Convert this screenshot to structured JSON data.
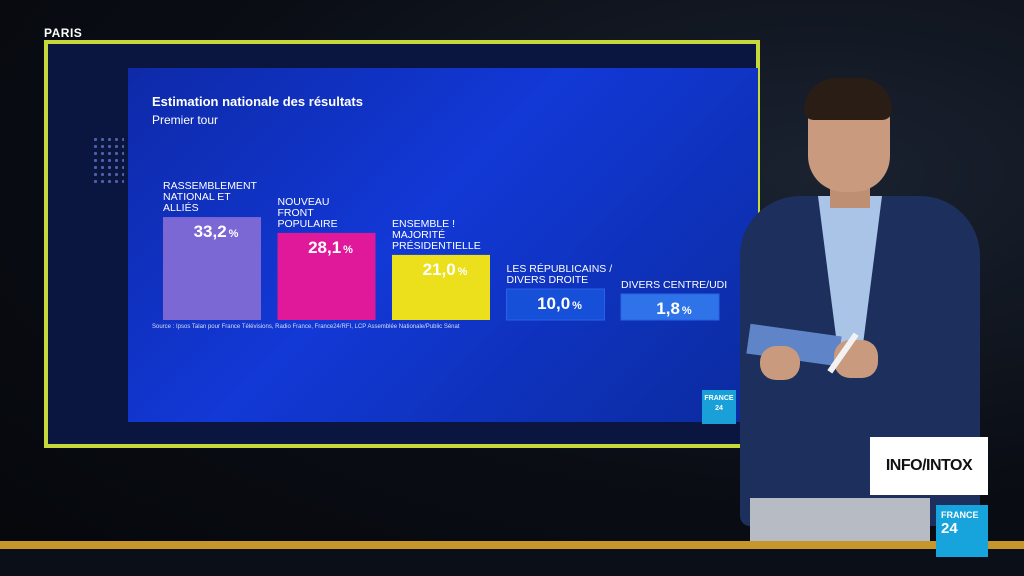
{
  "location": "PARIS",
  "colors": {
    "rn": "#7b68d4",
    "nfp": "#e0199a",
    "ens": "#ecdf1c",
    "lr": "#1650d8",
    "dvc": "#2f73e8",
    "frame": "#c7d93a"
  },
  "chart_data": {
    "type": "bar",
    "title": "Estimation nationale des résultats",
    "subtitle": "Premier tour",
    "categories": [
      [
        "RASSEMBLEMENT",
        "NATIONAL ET",
        "ALLIÉS"
      ],
      [
        "NOUVEAU",
        "FRONT",
        "POPULAIRE"
      ],
      [
        "ENSEMBLE !",
        "MAJORITÉ",
        "PRÉSIDENTIELLE"
      ],
      [
        "LES RÉPUBLICAINS /",
        "DIVERS DROITE"
      ],
      [
        "DIVERS CENTRE/UDI"
      ]
    ],
    "values": [
      33.2,
      28.1,
      21.0,
      10.0,
      1.8
    ],
    "value_labels": [
      "33,2",
      "28,1",
      "21,0",
      "10,0",
      "1,8"
    ],
    "unit": "%",
    "source": "Source : Ipsos Talan pour France Télévisions, Radio France, France24/RFI, LCP Assemblée Nationale/Public Sénat",
    "grid": false
  },
  "screen_logo": [
    "FRANCE",
    "24"
  ],
  "overlay": {
    "show_label": "INFO/INTOX",
    "logo_line1": "FRANCE",
    "logo_line2": "24"
  }
}
